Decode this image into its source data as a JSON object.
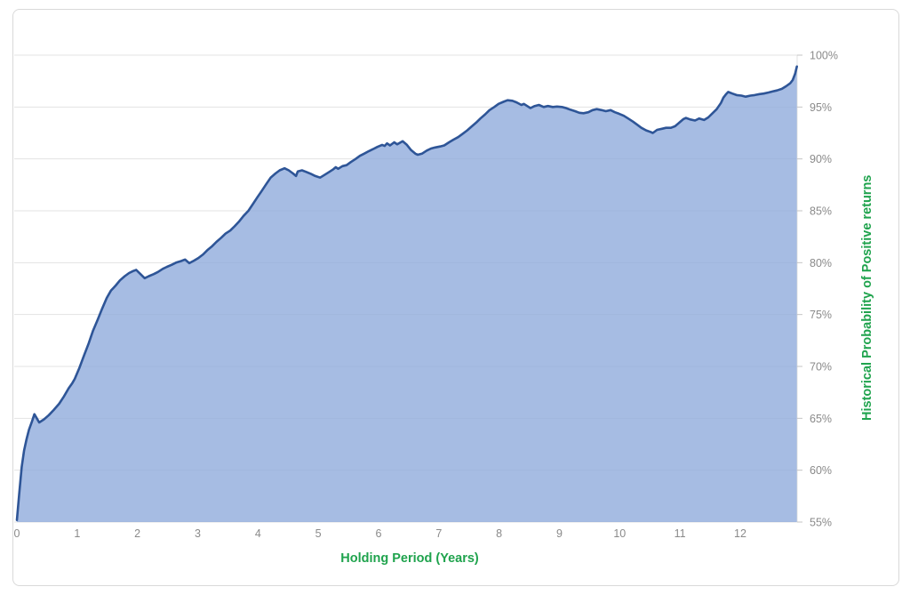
{
  "figure": {
    "border_color": "#d9d9d9",
    "background": "#ffffff"
  },
  "chart_data": {
    "type": "area",
    "title": "",
    "xlabel": "Holding Period (Years)",
    "ylabel": "Historical Probability of Positive returns",
    "x_ticks": [
      0,
      1,
      2,
      3,
      4,
      5,
      6,
      7,
      8,
      9,
      10,
      11,
      12
    ],
    "y_tick_values": [
      55,
      60,
      65,
      70,
      75,
      80,
      85,
      90,
      95,
      100
    ],
    "y_tick_labels": [
      "55%",
      "60%",
      "65%",
      "70%",
      "75%",
      "80%",
      "85%",
      "90%",
      "95%",
      "100%"
    ],
    "xlim": [
      0,
      12.94
    ],
    "ylim": [
      55,
      100
    ],
    "grid": true,
    "legend": "none",
    "axis_title_color": "#1fa34d",
    "tick_label_color": "#8a8a8a",
    "line_color": "#2e5597",
    "fill_color": "rgba(141,169,219,0.78)",
    "gridline_color": "#e3e3e3",
    "series": [
      {
        "name": "Historical Probability of Positive returns",
        "x": [
          0,
          0.04,
          0.08,
          0.12,
          0.16,
          0.2,
          0.25,
          0.29,
          0.33,
          0.37,
          0.45,
          0.53,
          0.61,
          0.7,
          0.78,
          0.86,
          0.92,
          0.96,
          1.04,
          1.11,
          1.19,
          1.26,
          1.34,
          1.41,
          1.49,
          1.56,
          1.64,
          1.71,
          1.79,
          1.86,
          1.93,
          1.98,
          2.05,
          2.12,
          2.19,
          2.27,
          2.34,
          2.42,
          2.49,
          2.57,
          2.64,
          2.72,
          2.79,
          2.86,
          2.94,
          3.01,
          3.09,
          3.16,
          3.24,
          3.31,
          3.39,
          3.46,
          3.54,
          3.61,
          3.69,
          3.76,
          3.84,
          3.91,
          3.99,
          4.06,
          4.14,
          4.21,
          4.29,
          4.36,
          4.44,
          4.51,
          4.58,
          4.63,
          4.66,
          4.73,
          4.8,
          4.88,
          4.95,
          5.03,
          5.1,
          5.17,
          5.25,
          5.29,
          5.33,
          5.4,
          5.47,
          5.54,
          5.62,
          5.69,
          5.76,
          5.84,
          5.91,
          5.98,
          6.06,
          6.1,
          6.14,
          6.19,
          6.26,
          6.31,
          6.4,
          6.47,
          6.54,
          6.61,
          6.65,
          6.72,
          6.8,
          6.87,
          6.94,
          7.02,
          7.09,
          7.17,
          7.24,
          7.32,
          7.39,
          7.47,
          7.54,
          7.62,
          7.69,
          7.77,
          7.84,
          7.92,
          7.99,
          8.07,
          8.14,
          8.22,
          8.29,
          8.37,
          8.41,
          8.48,
          8.52,
          8.59,
          8.66,
          8.74,
          8.81,
          8.89,
          8.96,
          9.04,
          9.11,
          9.18,
          9.26,
          9.33,
          9.4,
          9.48,
          9.55,
          9.62,
          9.7,
          9.77,
          9.85,
          9.92,
          9.99,
          10.07,
          10.14,
          10.22,
          10.29,
          10.36,
          10.44,
          10.51,
          10.55,
          10.62,
          10.7,
          10.77,
          10.85,
          10.92,
          10.99,
          11.06,
          11.1,
          11.17,
          11.25,
          11.32,
          11.4,
          11.47,
          11.54,
          11.61,
          11.68,
          11.72,
          11.76,
          11.8,
          11.87,
          11.94,
          12.02,
          12.09,
          12.17,
          12.24,
          12.32,
          12.39,
          12.47,
          12.54,
          12.61,
          12.69,
          12.76,
          12.83,
          12.87,
          12.91,
          12.94
        ],
        "y": [
          55.2,
          57.8,
          60.3,
          61.9,
          63.0,
          63.9,
          64.7,
          65.4,
          65.0,
          64.6,
          64.9,
          65.3,
          65.8,
          66.4,
          67.1,
          67.9,
          68.4,
          68.8,
          69.9,
          71.0,
          72.2,
          73.4,
          74.5,
          75.5,
          76.6,
          77.3,
          77.8,
          78.3,
          78.7,
          79.0,
          79.2,
          79.3,
          78.9,
          78.5,
          78.7,
          78.9,
          79.1,
          79.4,
          79.6,
          79.8,
          80.0,
          80.15,
          80.3,
          79.95,
          80.2,
          80.45,
          80.8,
          81.2,
          81.6,
          82.0,
          82.4,
          82.8,
          83.1,
          83.5,
          84.0,
          84.5,
          85.0,
          85.6,
          86.3,
          86.9,
          87.6,
          88.2,
          88.6,
          88.9,
          89.1,
          88.9,
          88.6,
          88.35,
          88.8,
          88.9,
          88.75,
          88.55,
          88.35,
          88.2,
          88.45,
          88.7,
          89.0,
          89.2,
          89.05,
          89.3,
          89.4,
          89.7,
          90.0,
          90.3,
          90.5,
          90.75,
          90.95,
          91.15,
          91.35,
          91.25,
          91.5,
          91.3,
          91.6,
          91.4,
          91.7,
          91.35,
          90.85,
          90.5,
          90.4,
          90.5,
          90.8,
          91.0,
          91.1,
          91.2,
          91.3,
          91.6,
          91.85,
          92.1,
          92.4,
          92.75,
          93.1,
          93.5,
          93.9,
          94.3,
          94.7,
          95.0,
          95.3,
          95.5,
          95.65,
          95.6,
          95.45,
          95.2,
          95.3,
          95.05,
          94.9,
          95.1,
          95.2,
          95.0,
          95.1,
          95.0,
          95.05,
          95.0,
          94.9,
          94.75,
          94.6,
          94.45,
          94.4,
          94.5,
          94.7,
          94.8,
          94.7,
          94.6,
          94.7,
          94.5,
          94.35,
          94.15,
          93.9,
          93.6,
          93.3,
          93.0,
          92.75,
          92.6,
          92.5,
          92.8,
          92.9,
          93.0,
          93.0,
          93.15,
          93.5,
          93.85,
          93.95,
          93.8,
          93.7,
          93.9,
          93.75,
          94.0,
          94.4,
          94.8,
          95.4,
          95.9,
          96.2,
          96.45,
          96.3,
          96.15,
          96.1,
          96.0,
          96.1,
          96.15,
          96.25,
          96.3,
          96.4,
          96.5,
          96.6,
          96.75,
          97.0,
          97.3,
          97.6,
          98.2,
          98.9
        ]
      }
    ]
  }
}
